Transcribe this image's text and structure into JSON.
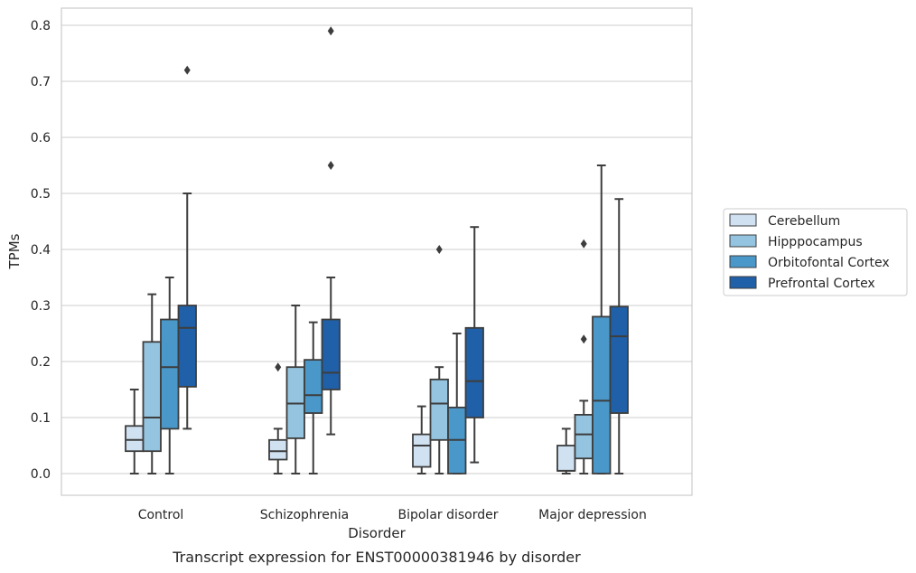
{
  "chart_data": {
    "type": "box",
    "caption": "Transcript expression for ENST00000381946 by disorder",
    "xlabel": "Disorder",
    "ylabel": "TPMs",
    "ylim": [
      -0.04,
      0.83
    ],
    "yticks": [
      "0.0",
      "0.1",
      "0.2",
      "0.3",
      "0.4",
      "0.5",
      "0.6",
      "0.7",
      "0.8"
    ],
    "ytick_values": [
      0.0,
      0.1,
      0.2,
      0.3,
      0.4,
      0.5,
      0.6,
      0.7,
      0.8
    ],
    "grid": true,
    "legend_position": "right",
    "categories": [
      "Control",
      "Schizophrenia",
      "Bipolar disorder",
      "Major depression"
    ],
    "series": [
      {
        "name": "Cerebellum",
        "color": "#d0e1f2",
        "boxes": [
          {
            "whisker_low": 0.0,
            "q1": 0.04,
            "median": 0.06,
            "q3": 0.085,
            "whisker_high": 0.15,
            "outliers": []
          },
          {
            "whisker_low": 0.0,
            "q1": 0.025,
            "median": 0.04,
            "q3": 0.06,
            "whisker_high": 0.08,
            "outliers": [
              0.19
            ]
          },
          {
            "whisker_low": 0.0,
            "q1": 0.012,
            "median": 0.05,
            "q3": 0.07,
            "whisker_high": 0.12,
            "outliers": []
          },
          {
            "whisker_low": 0.0,
            "q1": 0.005,
            "median": 0.005,
            "q3": 0.05,
            "whisker_high": 0.08,
            "outliers": []
          }
        ]
      },
      {
        "name": "Hipppocampus",
        "color": "#94c4df",
        "boxes": [
          {
            "whisker_low": 0.0,
            "q1": 0.04,
            "median": 0.1,
            "q3": 0.235,
            "whisker_high": 0.32,
            "outliers": []
          },
          {
            "whisker_low": 0.0,
            "q1": 0.063,
            "median": 0.125,
            "q3": 0.19,
            "whisker_high": 0.3,
            "outliers": []
          },
          {
            "whisker_low": 0.0,
            "q1": 0.06,
            "median": 0.125,
            "q3": 0.168,
            "whisker_high": 0.19,
            "outliers": [
              0.4
            ]
          },
          {
            "whisker_low": 0.0,
            "q1": 0.027,
            "median": 0.07,
            "q3": 0.105,
            "whisker_high": 0.13,
            "outliers": [
              0.24,
              0.41
            ]
          }
        ]
      },
      {
        "name": "Orbitofontal Cortex",
        "color": "#4a98c9",
        "boxes": [
          {
            "whisker_low": 0.0,
            "q1": 0.08,
            "median": 0.19,
            "q3": 0.275,
            "whisker_high": 0.35,
            "outliers": []
          },
          {
            "whisker_low": 0.0,
            "q1": 0.108,
            "median": 0.14,
            "q3": 0.203,
            "whisker_high": 0.27,
            "outliers": []
          },
          {
            "whisker_low": 0.0,
            "q1": 0.0,
            "median": 0.06,
            "q3": 0.118,
            "whisker_high": 0.25,
            "outliers": []
          },
          {
            "whisker_low": 0.0,
            "q1": 0.0,
            "median": 0.13,
            "q3": 0.28,
            "whisker_high": 0.55,
            "outliers": []
          }
        ]
      },
      {
        "name": "Prefrontal Cortex",
        "color": "#2060a8",
        "boxes": [
          {
            "whisker_low": 0.08,
            "q1": 0.155,
            "median": 0.26,
            "q3": 0.3,
            "whisker_high": 0.5,
            "outliers": [
              0.72
            ]
          },
          {
            "whisker_low": 0.07,
            "q1": 0.15,
            "median": 0.18,
            "q3": 0.275,
            "whisker_high": 0.35,
            "outliers": [
              0.55,
              0.79
            ]
          },
          {
            "whisker_low": 0.02,
            "q1": 0.1,
            "median": 0.165,
            "q3": 0.26,
            "whisker_high": 0.44,
            "outliers": []
          },
          {
            "whisker_low": 0.0,
            "q1": 0.108,
            "median": 0.245,
            "q3": 0.298,
            "whisker_high": 0.49,
            "outliers": []
          }
        ]
      }
    ]
  }
}
